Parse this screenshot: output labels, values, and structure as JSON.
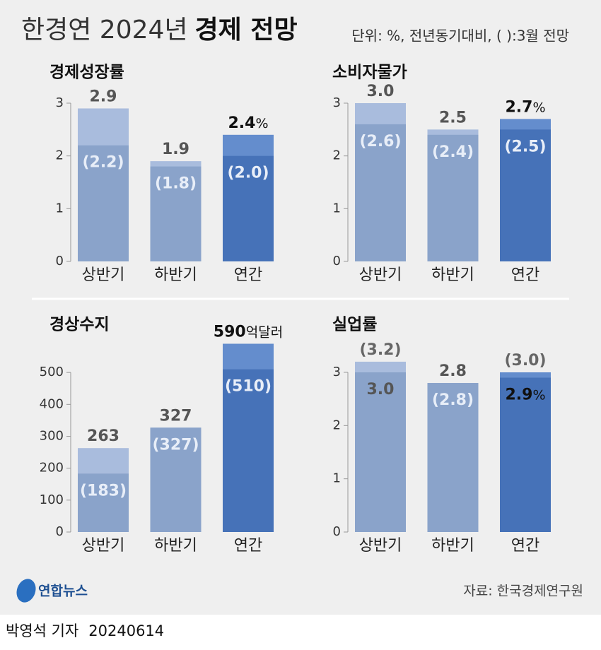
{
  "title": "한경연 2024년",
  "title_emphasis": "경제 전망",
  "subtitle": "단위: %, 전년동기대비, ( ):3월 전망",
  "logo": "연합뉴스",
  "source": "자료: 한국경제연구원",
  "byline": "박영석 기자",
  "date": "20240614",
  "chart_data": [
    {
      "type": "bar",
      "title": "경제성장률",
      "categories": [
        "상반기",
        "하반기",
        "연간"
      ],
      "values": [
        2.9,
        1.9,
        2.4
      ],
      "value_labels": [
        "2.9",
        "1.9",
        "2.4%"
      ],
      "prev_values": [
        2.2,
        1.8,
        2.0
      ],
      "prev_value_labels": [
        "(2.2)",
        "(1.8)",
        "(2.0)"
      ],
      "ylim": [
        0,
        3
      ],
      "yticks": [
        0,
        1,
        2,
        3
      ],
      "colors": [
        "#8aa3ca",
        "#8aa3ca",
        "#4672b8"
      ],
      "light_colors": [
        "#a9bcdd",
        "#a9bcdd",
        "#648dcd"
      ]
    },
    {
      "type": "bar",
      "title": "소비자물가",
      "categories": [
        "상반기",
        "하반기",
        "연간"
      ],
      "values": [
        3.0,
        2.5,
        2.7
      ],
      "value_labels": [
        "3.0",
        "2.5",
        "2.7%"
      ],
      "prev_values": [
        2.6,
        2.4,
        2.5
      ],
      "prev_value_labels": [
        "(2.6)",
        "(2.4)",
        "(2.5)"
      ],
      "ylim": [
        0,
        3
      ],
      "yticks": [
        0,
        1,
        2,
        3
      ],
      "colors": [
        "#8aa3ca",
        "#8aa3ca",
        "#4672b8"
      ],
      "light_colors": [
        "#a9bcdd",
        "#a9bcdd",
        "#648dcd"
      ]
    },
    {
      "type": "bar",
      "title": "경상수지",
      "categories": [
        "상반기",
        "하반기",
        "연간"
      ],
      "values": [
        263,
        327,
        590
      ],
      "value_labels": [
        "263",
        "327",
        "590억달러"
      ],
      "prev_values": [
        183,
        327,
        510
      ],
      "prev_value_labels": [
        "(183)",
        "(327)",
        "(510)"
      ],
      "ylim": [
        0,
        600
      ],
      "yticks": [
        0,
        100,
        200,
        300,
        400,
        500
      ],
      "colors": [
        "#8aa3ca",
        "#8aa3ca",
        "#4672b8"
      ],
      "light_colors": [
        "#a9bcdd",
        "#a9bcdd",
        "#648dcd"
      ]
    },
    {
      "type": "bar",
      "title": "실업률",
      "categories": [
        "상반기",
        "하반기",
        "연간"
      ],
      "values": [
        3.0,
        2.8,
        2.9
      ],
      "value_labels": [
        "3.0",
        "2.8",
        "2.9%"
      ],
      "prev_values": [
        3.2,
        2.8,
        3.0
      ],
      "prev_value_labels": [
        "(3.2)",
        "(2.8)",
        "(3.0)"
      ],
      "ylim": [
        0,
        3
      ],
      "yticks": [
        0,
        1,
        2,
        3
      ],
      "colors": [
        "#8aa3ca",
        "#8aa3ca",
        "#4672b8"
      ],
      "light_colors": [
        "#a9bcdd",
        "#a9bcdd",
        "#648dcd"
      ]
    }
  ]
}
